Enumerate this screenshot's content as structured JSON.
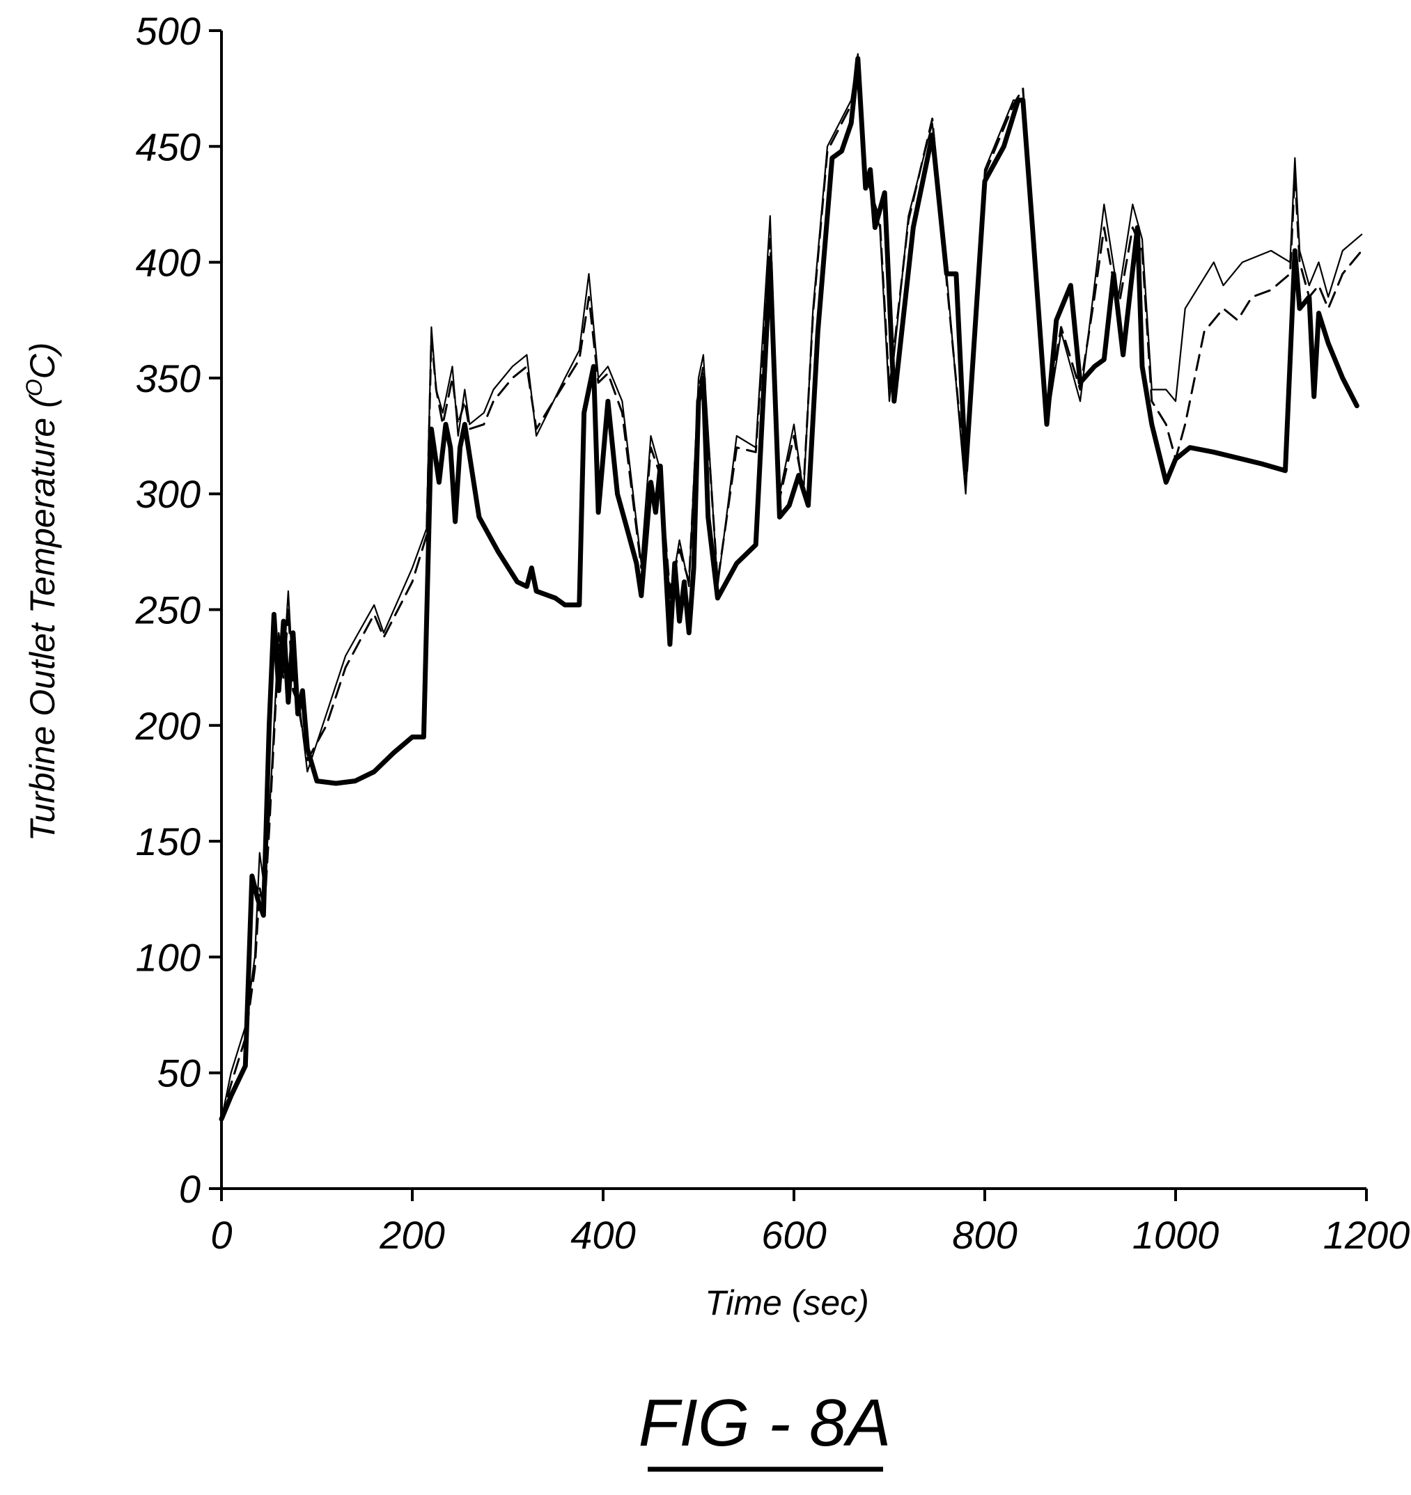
{
  "figure": {
    "caption": "FIG - 8A"
  },
  "chart_data": {
    "type": "line",
    "title": "",
    "xlabel": "Time (sec)",
    "ylabel_main": "Turbine Outlet Temperature (",
    "ylabel_sup": "O",
    "ylabel_end": "C)",
    "xlim": [
      0,
      1200
    ],
    "ylim": [
      0,
      500
    ],
    "xticks": [
      0,
      200,
      400,
      600,
      800,
      1000,
      1200
    ],
    "yticks": [
      0,
      50,
      100,
      150,
      200,
      250,
      300,
      350,
      400,
      450,
      500
    ],
    "grid": false,
    "legend": "none",
    "series": [
      {
        "style": "thin-solid",
        "color": "#000000",
        "points": [
          [
            0,
            30
          ],
          [
            10,
            50
          ],
          [
            25,
            70
          ],
          [
            35,
            100
          ],
          [
            40,
            145
          ],
          [
            45,
            130
          ],
          [
            50,
            160
          ],
          [
            55,
            200
          ],
          [
            60,
            240
          ],
          [
            65,
            225
          ],
          [
            70,
            258
          ],
          [
            75,
            220
          ],
          [
            80,
            215
          ],
          [
            90,
            180
          ],
          [
            110,
            205
          ],
          [
            130,
            230
          ],
          [
            160,
            252
          ],
          [
            170,
            240
          ],
          [
            200,
            268
          ],
          [
            215,
            285
          ],
          [
            220,
            372
          ],
          [
            225,
            345
          ],
          [
            232,
            335
          ],
          [
            242,
            355
          ],
          [
            248,
            325
          ],
          [
            255,
            345
          ],
          [
            260,
            330
          ],
          [
            275,
            335
          ],
          [
            285,
            345
          ],
          [
            305,
            355
          ],
          [
            320,
            360
          ],
          [
            330,
            325
          ],
          [
            360,
            350
          ],
          [
            375,
            362
          ],
          [
            385,
            395
          ],
          [
            395,
            350
          ],
          [
            405,
            355
          ],
          [
            420,
            340
          ],
          [
            440,
            270
          ],
          [
            450,
            325
          ],
          [
            460,
            310
          ],
          [
            470,
            255
          ],
          [
            480,
            280
          ],
          [
            490,
            260
          ],
          [
            500,
            350
          ],
          [
            505,
            360
          ],
          [
            520,
            260
          ],
          [
            540,
            325
          ],
          [
            560,
            320
          ],
          [
            575,
            420
          ],
          [
            585,
            300
          ],
          [
            600,
            330
          ],
          [
            610,
            300
          ],
          [
            620,
            380
          ],
          [
            635,
            450
          ],
          [
            660,
            470
          ],
          [
            667,
            490
          ],
          [
            675,
            440
          ],
          [
            690,
            415
          ],
          [
            700,
            340
          ],
          [
            720,
            420
          ],
          [
            745,
            460
          ],
          [
            760,
            395
          ],
          [
            780,
            300
          ],
          [
            800,
            440
          ],
          [
            830,
            470
          ],
          [
            840,
            470
          ],
          [
            855,
            380
          ],
          [
            865,
            330
          ],
          [
            880,
            370
          ],
          [
            900,
            340
          ],
          [
            915,
            390
          ],
          [
            925,
            425
          ],
          [
            940,
            385
          ],
          [
            955,
            425
          ],
          [
            965,
            410
          ],
          [
            975,
            345
          ],
          [
            990,
            345
          ],
          [
            1000,
            340
          ],
          [
            1010,
            380
          ],
          [
            1040,
            400
          ],
          [
            1050,
            390
          ],
          [
            1070,
            400
          ],
          [
            1100,
            405
          ],
          [
            1120,
            400
          ],
          [
            1125,
            445
          ],
          [
            1130,
            405
          ],
          [
            1140,
            390
          ],
          [
            1150,
            400
          ],
          [
            1160,
            385
          ],
          [
            1175,
            405
          ],
          [
            1195,
            412
          ]
        ]
      },
      {
        "style": "dashed",
        "color": "#000000",
        "points": [
          [
            0,
            30
          ],
          [
            10,
            45
          ],
          [
            25,
            65
          ],
          [
            35,
            95
          ],
          [
            40,
            130
          ],
          [
            45,
            120
          ],
          [
            50,
            155
          ],
          [
            55,
            195
          ],
          [
            60,
            235
          ],
          [
            65,
            220
          ],
          [
            70,
            250
          ],
          [
            75,
            215
          ],
          [
            80,
            210
          ],
          [
            90,
            185
          ],
          [
            110,
            200
          ],
          [
            130,
            225
          ],
          [
            160,
            248
          ],
          [
            170,
            238
          ],
          [
            200,
            262
          ],
          [
            215,
            282
          ],
          [
            220,
            368
          ],
          [
            225,
            345
          ],
          [
            232,
            330
          ],
          [
            242,
            350
          ],
          [
            248,
            330
          ],
          [
            255,
            340
          ],
          [
            260,
            328
          ],
          [
            275,
            330
          ],
          [
            285,
            340
          ],
          [
            305,
            350
          ],
          [
            320,
            355
          ],
          [
            330,
            328
          ],
          [
            360,
            348
          ],
          [
            375,
            358
          ],
          [
            385,
            385
          ],
          [
            395,
            348
          ],
          [
            405,
            352
          ],
          [
            420,
            335
          ],
          [
            440,
            268
          ],
          [
            450,
            320
          ],
          [
            460,
            308
          ],
          [
            470,
            258
          ],
          [
            480,
            276
          ],
          [
            490,
            262
          ],
          [
            500,
            345
          ],
          [
            505,
            355
          ],
          [
            520,
            262
          ],
          [
            540,
            320
          ],
          [
            560,
            318
          ],
          [
            575,
            410
          ],
          [
            585,
            298
          ],
          [
            600,
            325
          ],
          [
            610,
            302
          ],
          [
            620,
            378
          ],
          [
            635,
            448
          ],
          [
            660,
            468
          ],
          [
            667,
            488
          ],
          [
            675,
            438
          ],
          [
            690,
            418
          ],
          [
            700,
            345
          ],
          [
            720,
            418
          ],
          [
            745,
            462
          ],
          [
            760,
            392
          ],
          [
            780,
            305
          ],
          [
            800,
            438
          ],
          [
            830,
            468
          ],
          [
            840,
            475
          ],
          [
            855,
            385
          ],
          [
            865,
            335
          ],
          [
            880,
            372
          ],
          [
            900,
            345
          ],
          [
            915,
            385
          ],
          [
            925,
            415
          ],
          [
            940,
            380
          ],
          [
            955,
            415
          ],
          [
            965,
            405
          ],
          [
            975,
            340
          ],
          [
            990,
            330
          ],
          [
            1000,
            315
          ],
          [
            1010,
            330
          ],
          [
            1030,
            370
          ],
          [
            1050,
            380
          ],
          [
            1065,
            375
          ],
          [
            1080,
            385
          ],
          [
            1100,
            388
          ],
          [
            1120,
            395
          ],
          [
            1125,
            438
          ],
          [
            1130,
            400
          ],
          [
            1140,
            385
          ],
          [
            1150,
            390
          ],
          [
            1160,
            380
          ],
          [
            1175,
            395
          ],
          [
            1195,
            405
          ]
        ]
      },
      {
        "style": "thick-solid",
        "color": "#000000",
        "points": [
          [
            0,
            30
          ],
          [
            10,
            40
          ],
          [
            25,
            53
          ],
          [
            32,
            135
          ],
          [
            38,
            125
          ],
          [
            44,
            118
          ],
          [
            50,
            200
          ],
          [
            55,
            248
          ],
          [
            60,
            215
          ],
          [
            65,
            245
          ],
          [
            70,
            210
          ],
          [
            75,
            240
          ],
          [
            80,
            205
          ],
          [
            85,
            215
          ],
          [
            90,
            190
          ],
          [
            100,
            176
          ],
          [
            120,
            175
          ],
          [
            140,
            176
          ],
          [
            160,
            180
          ],
          [
            180,
            188
          ],
          [
            200,
            195
          ],
          [
            212,
            195
          ],
          [
            220,
            328
          ],
          [
            228,
            305
          ],
          [
            235,
            330
          ],
          [
            240,
            320
          ],
          [
            245,
            288
          ],
          [
            250,
            320
          ],
          [
            255,
            330
          ],
          [
            270,
            290
          ],
          [
            290,
            275
          ],
          [
            310,
            262
          ],
          [
            320,
            260
          ],
          [
            325,
            268
          ],
          [
            330,
            258
          ],
          [
            350,
            255
          ],
          [
            360,
            252
          ],
          [
            375,
            252
          ],
          [
            380,
            335
          ],
          [
            390,
            355
          ],
          [
            395,
            292
          ],
          [
            405,
            340
          ],
          [
            415,
            300
          ],
          [
            425,
            285
          ],
          [
            435,
            270
          ],
          [
            440,
            256
          ],
          [
            450,
            305
          ],
          [
            455,
            292
          ],
          [
            460,
            312
          ],
          [
            465,
            272
          ],
          [
            470,
            235
          ],
          [
            475,
            270
          ],
          [
            480,
            245
          ],
          [
            485,
            262
          ],
          [
            490,
            240
          ],
          [
            495,
            268
          ],
          [
            500,
            340
          ],
          [
            505,
            350
          ],
          [
            510,
            290
          ],
          [
            520,
            255
          ],
          [
            540,
            270
          ],
          [
            560,
            278
          ],
          [
            575,
            400
          ],
          [
            585,
            290
          ],
          [
            595,
            295
          ],
          [
            605,
            308
          ],
          [
            615,
            295
          ],
          [
            625,
            370
          ],
          [
            640,
            445
          ],
          [
            650,
            448
          ],
          [
            660,
            460
          ],
          [
            667,
            488
          ],
          [
            675,
            432
          ],
          [
            680,
            440
          ],
          [
            685,
            415
          ],
          [
            695,
            430
          ],
          [
            705,
            340
          ],
          [
            725,
            415
          ],
          [
            745,
            455
          ],
          [
            760,
            395
          ],
          [
            770,
            395
          ],
          [
            780,
            310
          ],
          [
            800,
            435
          ],
          [
            820,
            450
          ],
          [
            835,
            470
          ],
          [
            840,
            470
          ],
          [
            850,
            415
          ],
          [
            865,
            330
          ],
          [
            875,
            375
          ],
          [
            890,
            390
          ],
          [
            900,
            348
          ],
          [
            915,
            355
          ],
          [
            925,
            358
          ],
          [
            935,
            395
          ],
          [
            945,
            360
          ],
          [
            960,
            415
          ],
          [
            965,
            355
          ],
          [
            975,
            330
          ],
          [
            990,
            305
          ],
          [
            1000,
            315
          ],
          [
            1015,
            320
          ],
          [
            1040,
            318
          ],
          [
            1070,
            315
          ],
          [
            1090,
            313
          ],
          [
            1115,
            310
          ],
          [
            1125,
            405
          ],
          [
            1130,
            380
          ],
          [
            1140,
            385
          ],
          [
            1145,
            342
          ],
          [
            1150,
            378
          ],
          [
            1160,
            365
          ],
          [
            1175,
            350
          ],
          [
            1190,
            338
          ]
        ]
      }
    ]
  }
}
